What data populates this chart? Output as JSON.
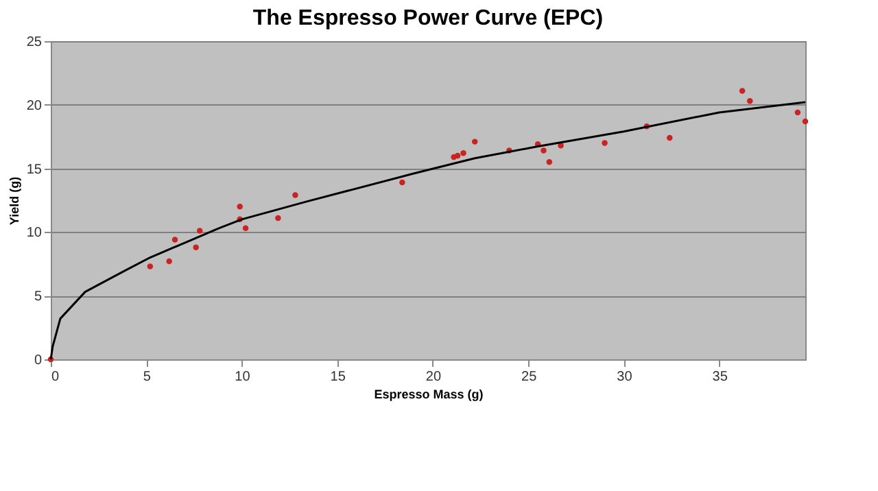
{
  "chart_data": {
    "type": "scatter",
    "title": "The Espresso Power Curve (EPC)",
    "xlabel": "Espresso Mass (g)",
    "ylabel": "Yield (g)",
    "xlim": [
      0,
      39.5
    ],
    "xticks": [
      0,
      5,
      10,
      15,
      20,
      25,
      30,
      35
    ],
    "ylim": [
      0,
      25
    ],
    "yticks": [
      0,
      5,
      10,
      15,
      20,
      25
    ],
    "grid": "y",
    "series": [
      {
        "color": "#cc2222",
        "marker": "circle",
        "x": [
          0,
          5.2,
          6.2,
          6.5,
          7.6,
          7.8,
          9.9,
          9.9,
          10.2,
          11.9,
          12.8,
          18.4,
          21.1,
          21.3,
          21.6,
          22.2,
          24.0,
          25.5,
          25.8,
          26.1,
          26.7,
          29.0,
          31.2,
          32.4,
          36.2,
          36.6,
          39.1,
          39.5
        ],
        "values": [
          0,
          7.3,
          7.7,
          9.4,
          8.8,
          10.1,
          12.0,
          11.0,
          10.3,
          11.1,
          12.9,
          13.9,
          15.9,
          16.0,
          16.2,
          17.1,
          16.4,
          16.9,
          16.4,
          15.5,
          16.8,
          17.0,
          18.3,
          17.4,
          21.1,
          20.3,
          19.4,
          18.7
        ]
      },
      {
        "type": "line",
        "color": "#000000",
        "marker": "none",
        "line_style": "solid",
        "x": [
          0,
          0.1,
          0.5,
          1.8,
          3.8,
          5.2,
          8.8,
          10.0,
          13.4,
          19.0,
          22.2,
          25.4,
          30.0,
          35.0,
          39.5
        ],
        "values": [
          0,
          1.0,
          3.2,
          5.3,
          6.9,
          8.0,
          10.3,
          11.0,
          12.4,
          14.6,
          15.8,
          16.7,
          17.9,
          19.4,
          20.2
        ]
      }
    ]
  }
}
